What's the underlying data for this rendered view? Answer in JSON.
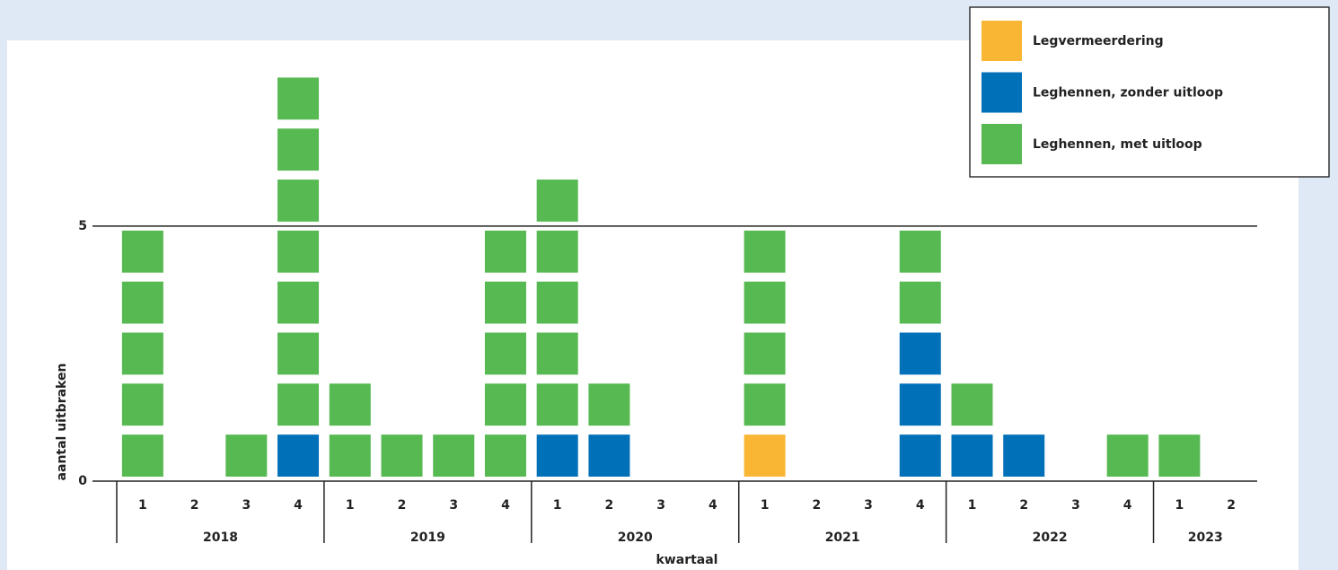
{
  "chart_data": {
    "type": "unit-stack",
    "x_label": "kwartaal",
    "y_label": "aantal uitbraken",
    "groups": [
      {
        "name": "2018",
        "categories": [
          "1",
          "2",
          "3",
          "4"
        ]
      },
      {
        "name": "2019",
        "categories": [
          "1",
          "2",
          "3",
          "4"
        ]
      },
      {
        "name": "2020",
        "categories": [
          "1",
          "2",
          "3",
          "4"
        ]
      },
      {
        "name": "2021",
        "categories": [
          "1",
          "2",
          "3",
          "4"
        ]
      },
      {
        "name": "2022",
        "categories": [
          "1",
          "2",
          "3",
          "4"
        ]
      },
      {
        "name": "2023",
        "categories": [
          "1",
          "2"
        ]
      }
    ],
    "series": [
      {
        "name": "Legvermeerdering",
        "color": "#f9b634",
        "values": [
          0,
          0,
          0,
          0,
          0,
          0,
          0,
          0,
          0,
          0,
          0,
          0,
          1,
          0,
          0,
          0,
          0,
          0,
          0,
          0,
          0,
          0
        ]
      },
      {
        "name": "Leghennen, zonder uitloop",
        "color": "#0070b8",
        "values": [
          0,
          0,
          0,
          1,
          0,
          0,
          0,
          0,
          1,
          1,
          0,
          0,
          0,
          0,
          0,
          3,
          1,
          1,
          0,
          0,
          0,
          0
        ]
      },
      {
        "name": "Leghennen, met uitloop",
        "color": "#57b952",
        "values": [
          5,
          0,
          1,
          7,
          2,
          1,
          1,
          5,
          5,
          1,
          0,
          0,
          4,
          0,
          0,
          2,
          1,
          0,
          0,
          1,
          1,
          0
        ]
      }
    ],
    "ylim": [
      0,
      8.5
    ],
    "yticks": [
      0,
      5
    ],
    "grid": true,
    "legend": "top-right"
  }
}
